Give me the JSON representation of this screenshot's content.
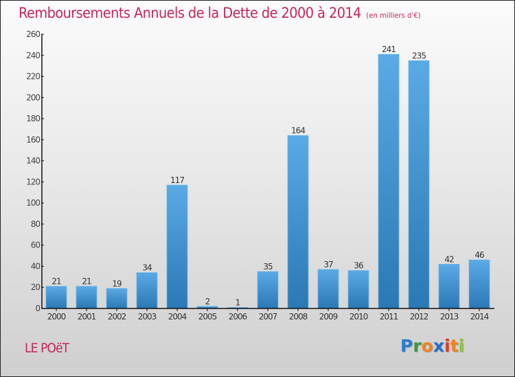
{
  "header": {
    "title": "Remboursements Annuels de la Dette de 2000 à 2014",
    "unit": "(en milliers d'€)"
  },
  "footer": {
    "location": "LE POëT",
    "logo_letters": [
      {
        "ch": "P",
        "color": "#2a7fcf"
      },
      {
        "ch": "r",
        "color": "#3a9a3a"
      },
      {
        "ch": "o",
        "color": "#f0821e"
      },
      {
        "ch": "x",
        "color": "#1f6fc9"
      },
      {
        "ch": "i",
        "color": "#e03a2a"
      },
      {
        "ch": "t",
        "color": "#f0821e"
      },
      {
        "ch": "i",
        "color": "#8cc63e"
      }
    ]
  },
  "colors": {
    "title": "#c0285a",
    "bar_top": "#5aaae6",
    "bar_bottom": "#2a78b4"
  },
  "chart_data": {
    "type": "bar",
    "title": "Remboursements Annuels de la Dette de 2000 à 2014",
    "subtitle": "(en milliers d'€)",
    "xlabel": "",
    "ylabel": "",
    "categories": [
      "2000",
      "2001",
      "2002",
      "2003",
      "2004",
      "2005",
      "2006",
      "2007",
      "2008",
      "2009",
      "2010",
      "2011",
      "2012",
      "2013",
      "2014"
    ],
    "values": [
      21,
      21,
      19,
      34,
      117,
      2,
      1,
      35,
      164,
      37,
      36,
      241,
      235,
      42,
      46
    ],
    "ylim": [
      0,
      260
    ],
    "yticks": [
      0,
      20,
      40,
      60,
      80,
      100,
      120,
      140,
      160,
      180,
      200,
      220,
      240,
      260
    ],
    "grid": false,
    "data_labels": true,
    "legend": "none"
  }
}
